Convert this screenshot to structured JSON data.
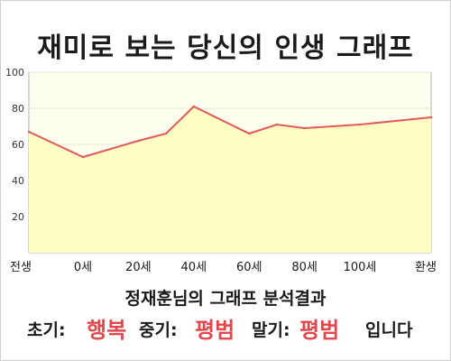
{
  "title": "재미로 보는 당신의 인생 그래프",
  "result_title": "정재훈님의 그래프 분석결과",
  "summary": {
    "early_label": "초기:",
    "early_value": "행복",
    "middle_label": "중기:",
    "middle_value": "평범",
    "late_label": "말기:",
    "late_value": "평범",
    "ending": "입니다"
  },
  "colors": {
    "line": "#e05a5a",
    "fill": "#ffffc4",
    "accent": "#e0484e"
  },
  "chart_data": {
    "type": "area",
    "title": "재미로 보는 당신의 인생 그래프",
    "xlabel": "",
    "ylabel": "",
    "x_categories": [
      "전생",
      "0세",
      "20세",
      "40세",
      "60세",
      "80세",
      "100세",
      "환생"
    ],
    "ylim": [
      0,
      100
    ],
    "y_ticks": [
      20,
      40,
      60,
      80,
      100
    ],
    "grid": true,
    "legend": "none",
    "series": [
      {
        "points": [
          {
            "x": "전생",
            "y": 67
          },
          {
            "x": "0세",
            "y": 53
          },
          {
            "x": "20세",
            "y": 62
          },
          {
            "x": "30세",
            "y": 66
          },
          {
            "x": "40세",
            "y": 81
          },
          {
            "x": "60세",
            "y": 66
          },
          {
            "x": "70세",
            "y": 71
          },
          {
            "x": "80세",
            "y": 69
          },
          {
            "x": "100세",
            "y": 71
          },
          {
            "x": "환생",
            "y": 75
          }
        ]
      }
    ]
  }
}
